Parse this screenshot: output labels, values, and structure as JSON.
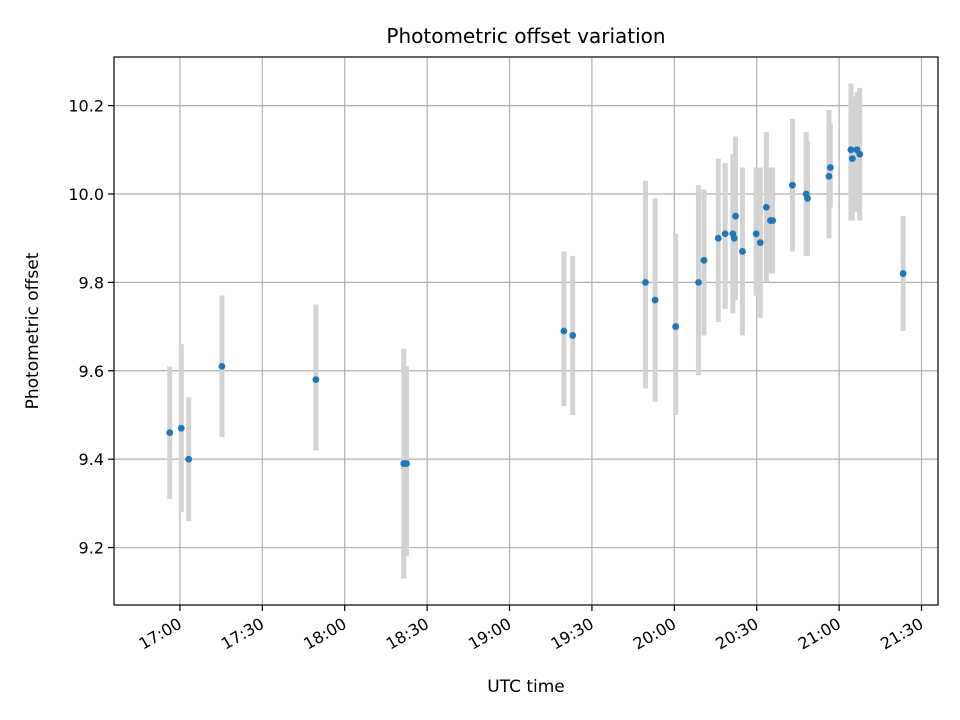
{
  "chart_data": {
    "type": "scatter",
    "title": "Photometric offset variation",
    "xlabel": "UTC time",
    "ylabel": "Photometric offset",
    "grid": true,
    "xlim_minutes": [
      996,
      1296
    ],
    "ylim": [
      9.07,
      10.31
    ],
    "x_ticks": [
      {
        "minutes": 1020,
        "label": "17:00"
      },
      {
        "minutes": 1050,
        "label": "17:30"
      },
      {
        "minutes": 1080,
        "label": "18:00"
      },
      {
        "minutes": 1110,
        "label": "18:30"
      },
      {
        "minutes": 1140,
        "label": "19:00"
      },
      {
        "minutes": 1170,
        "label": "19:30"
      },
      {
        "minutes": 1200,
        "label": "20:00"
      },
      {
        "minutes": 1230,
        "label": "20:30"
      },
      {
        "minutes": 1260,
        "label": "21:00"
      },
      {
        "minutes": 1290,
        "label": "21:30"
      }
    ],
    "y_ticks": [
      {
        "value": 9.2,
        "label": "9.2"
      },
      {
        "value": 9.4,
        "label": "9.4"
      },
      {
        "value": 9.6,
        "label": "9.6"
      },
      {
        "value": 9.8,
        "label": "9.8"
      },
      {
        "value": 10.0,
        "label": "10.0"
      },
      {
        "value": 10.2,
        "label": "10.2"
      }
    ],
    "colors": {
      "point": "#1f77b4",
      "errorbar": "#d3d3d3",
      "grid": "#b0b0b0"
    },
    "points": [
      {
        "t": 1016.3,
        "y": 9.46,
        "lo": 9.31,
        "hi": 9.61
      },
      {
        "t": 1020.5,
        "y": 9.47,
        "lo": 9.28,
        "hi": 9.66
      },
      {
        "t": 1023.2,
        "y": 9.4,
        "lo": 9.26,
        "hi": 9.54
      },
      {
        "t": 1035.3,
        "y": 9.61,
        "lo": 9.45,
        "hi": 9.77
      },
      {
        "t": 1069.5,
        "y": 9.58,
        "lo": 9.42,
        "hi": 9.75
      },
      {
        "t": 1101.5,
        "y": 9.39,
        "lo": 9.13,
        "hi": 9.65
      },
      {
        "t": 1102.5,
        "y": 9.39,
        "lo": 9.18,
        "hi": 9.61
      },
      {
        "t": 1159.8,
        "y": 9.69,
        "lo": 9.52,
        "hi": 9.87
      },
      {
        "t": 1163.0,
        "y": 9.68,
        "lo": 9.5,
        "hi": 9.86
      },
      {
        "t": 1189.5,
        "y": 9.8,
        "lo": 9.56,
        "hi": 10.03
      },
      {
        "t": 1193.0,
        "y": 9.76,
        "lo": 9.53,
        "hi": 9.99
      },
      {
        "t": 1200.5,
        "y": 9.7,
        "lo": 9.5,
        "hi": 9.91
      },
      {
        "t": 1208.8,
        "y": 9.8,
        "lo": 9.59,
        "hi": 10.02
      },
      {
        "t": 1210.8,
        "y": 9.85,
        "lo": 9.68,
        "hi": 10.01
      },
      {
        "t": 1216.0,
        "y": 9.9,
        "lo": 9.71,
        "hi": 10.08
      },
      {
        "t": 1218.5,
        "y": 9.91,
        "lo": 9.74,
        "hi": 10.07
      },
      {
        "t": 1221.3,
        "y": 9.91,
        "lo": 9.73,
        "hi": 10.09
      },
      {
        "t": 1221.8,
        "y": 9.9,
        "lo": 9.76,
        "hi": 10.04
      },
      {
        "t": 1222.3,
        "y": 9.95,
        "lo": 9.76,
        "hi": 10.13
      },
      {
        "t": 1224.8,
        "y": 9.87,
        "lo": 9.68,
        "hi": 10.06
      },
      {
        "t": 1229.8,
        "y": 9.91,
        "lo": 9.77,
        "hi": 10.06
      },
      {
        "t": 1231.3,
        "y": 9.89,
        "lo": 9.72,
        "hi": 10.06
      },
      {
        "t": 1233.5,
        "y": 9.97,
        "lo": 9.8,
        "hi": 10.14
      },
      {
        "t": 1235.0,
        "y": 9.94,
        "lo": 9.82,
        "hi": 10.06
      },
      {
        "t": 1235.8,
        "y": 9.94,
        "lo": 9.82,
        "hi": 10.06
      },
      {
        "t": 1243.0,
        "y": 10.02,
        "lo": 9.87,
        "hi": 10.17
      },
      {
        "t": 1248.0,
        "y": 10.0,
        "lo": 9.86,
        "hi": 10.14
      },
      {
        "t": 1248.5,
        "y": 9.99,
        "lo": 9.86,
        "hi": 10.12
      },
      {
        "t": 1256.3,
        "y": 10.04,
        "lo": 9.9,
        "hi": 10.19
      },
      {
        "t": 1256.8,
        "y": 10.06,
        "lo": 9.97,
        "hi": 10.16
      },
      {
        "t": 1264.3,
        "y": 10.1,
        "lo": 9.94,
        "hi": 10.25
      },
      {
        "t": 1264.8,
        "y": 10.08,
        "lo": 9.94,
        "hi": 10.22
      },
      {
        "t": 1266.5,
        "y": 10.1,
        "lo": 9.96,
        "hi": 10.23
      },
      {
        "t": 1267.5,
        "y": 10.09,
        "lo": 9.94,
        "hi": 10.24
      },
      {
        "t": 1283.3,
        "y": 9.82,
        "lo": 9.69,
        "hi": 9.95
      }
    ]
  }
}
